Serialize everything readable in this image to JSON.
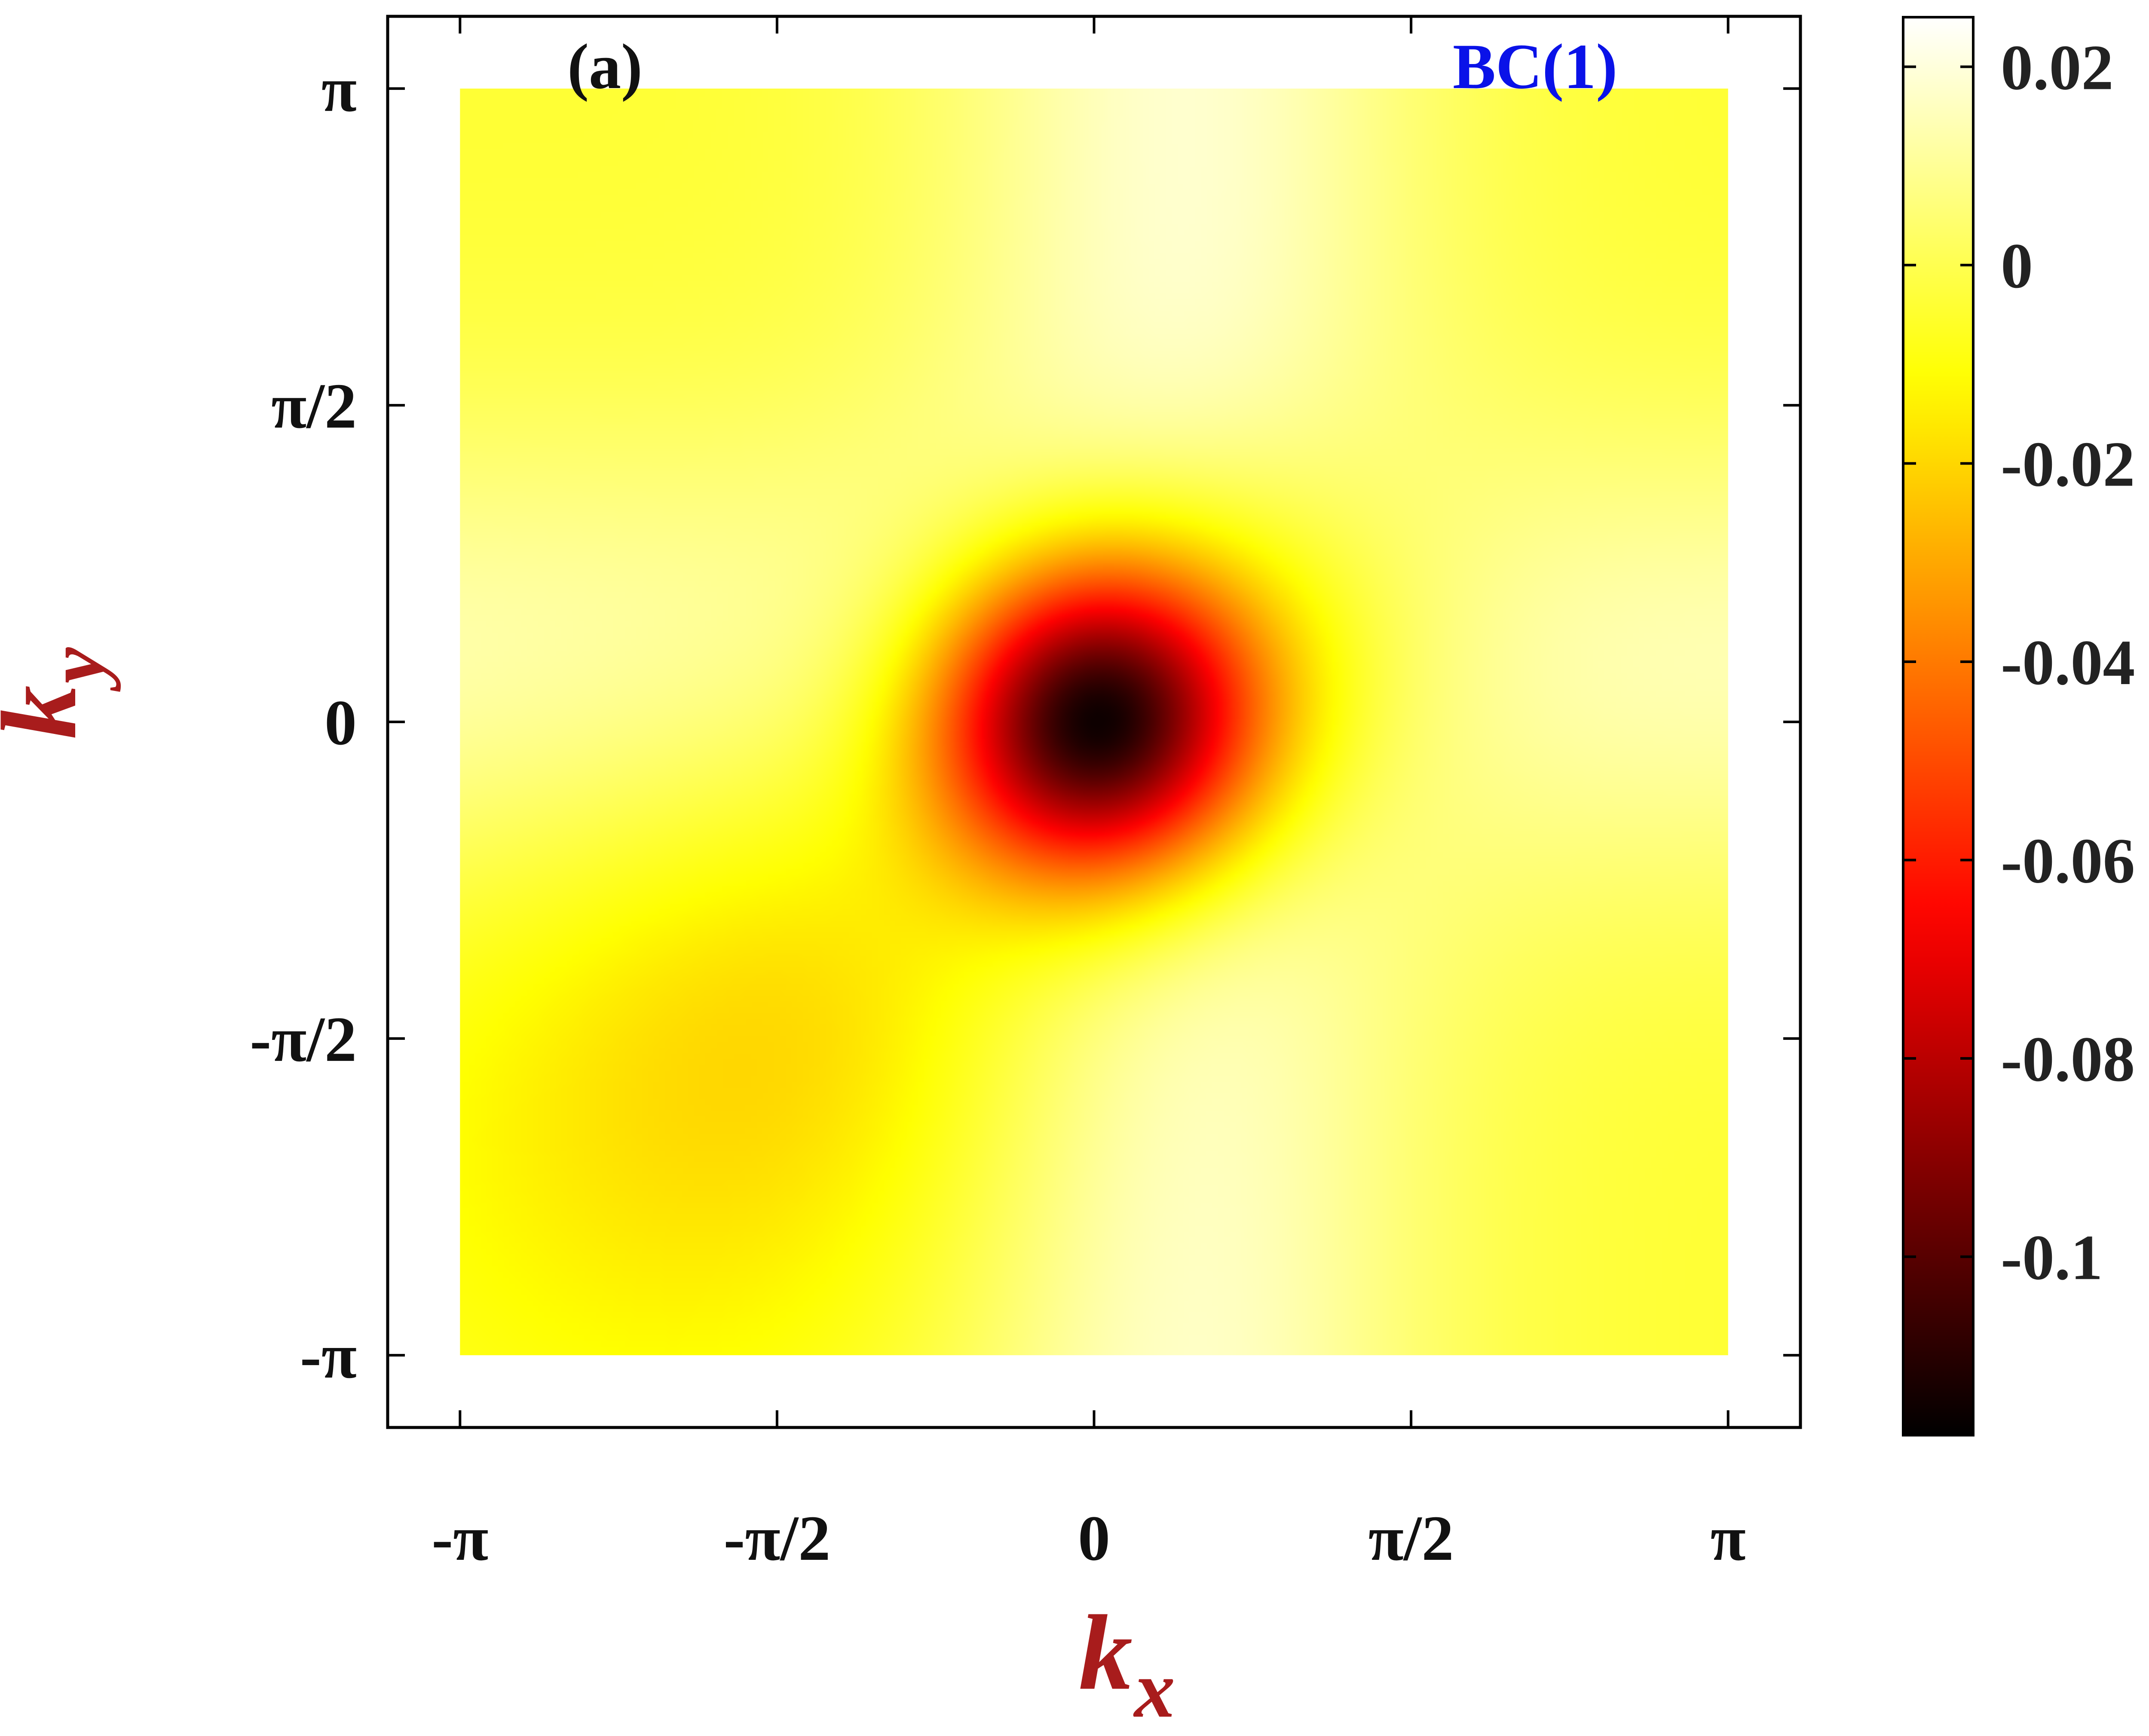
{
  "chart_data": {
    "type": "heatmap",
    "panel_label": "(a)",
    "series_label": "BC(1)",
    "series_label_color": "#0a12e8",
    "axis_title_color": "#a81c1c",
    "xlabel": {
      "main": "k",
      "sub": "x"
    },
    "ylabel": {
      "main": "k",
      "sub": "y"
    },
    "xlim": [
      -3.5,
      3.5
    ],
    "ylim": [
      -3.5,
      3.5
    ],
    "x_ticks": [
      {
        "value": -3.14159,
        "label": "-π"
      },
      {
        "value": -1.5708,
        "label": "-π/2"
      },
      {
        "value": 0,
        "label": "0"
      },
      {
        "value": 1.5708,
        "label": "π/2"
      },
      {
        "value": 3.14159,
        "label": "π"
      }
    ],
    "y_ticks": [
      {
        "value": 3.14159,
        "label": "π"
      },
      {
        "value": 1.5708,
        "label": "π/2"
      },
      {
        "value": 0,
        "label": "0"
      },
      {
        "value": -1.5708,
        "label": "-π/2"
      },
      {
        "value": -3.14159,
        "label": "-π"
      }
    ],
    "data_extent": {
      "x": [
        -3.14159,
        3.14159
      ],
      "y": [
        -3.14159,
        3.14159
      ]
    },
    "colormap": "hot",
    "colorbar": {
      "range": [
        -0.118,
        0.025
      ],
      "ticks": [
        {
          "value": 0.02,
          "label": "0.02"
        },
        {
          "value": 0,
          "label": "0"
        },
        {
          "value": -0.02,
          "label": "-0.02"
        },
        {
          "value": -0.04,
          "label": "-0.04"
        },
        {
          "value": -0.06,
          "label": "-0.06"
        },
        {
          "value": -0.08,
          "label": "-0.08"
        },
        {
          "value": -0.1,
          "label": "-0.1"
        }
      ]
    },
    "features": [
      {
        "kind": "minimum",
        "x": 0,
        "y": 0,
        "value": -0.118,
        "width": 0.55
      },
      {
        "kind": "shoulder",
        "x": 0.7,
        "y": 0.35,
        "value": -0.035,
        "width": 0.75
      },
      {
        "kind": "tail",
        "x": -1.0,
        "y": -0.9,
        "value": -0.012,
        "width": 0.9
      },
      {
        "kind": "broad-low",
        "x": -1.9,
        "y": -1.9,
        "value": -0.009,
        "width": 1.3
      },
      {
        "kind": "ridge-vertical",
        "x": 0.45,
        "value": 0.022,
        "width": 0.85
      },
      {
        "kind": "ridge-horizontal",
        "y": 0.3,
        "value": 0.018,
        "width": 0.85
      }
    ]
  }
}
